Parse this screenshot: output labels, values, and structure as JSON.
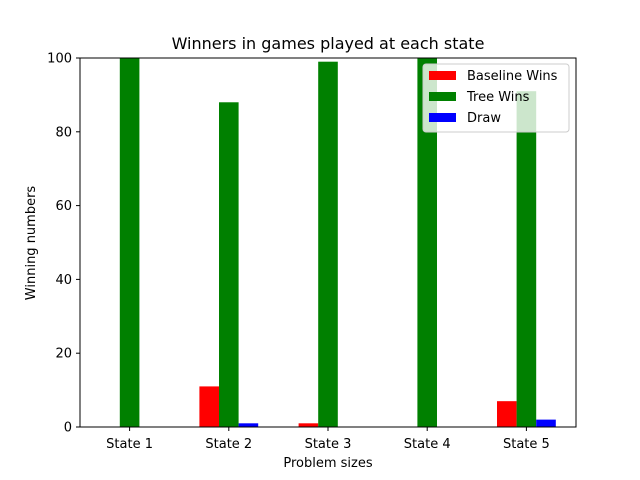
{
  "chart_data": {
    "type": "bar",
    "title": "Winners in games played at each state",
    "xlabel": "Problem sizes",
    "ylabel": "Winning numbers",
    "categories": [
      "State 1",
      "State 2",
      "State 3",
      "State 4",
      "State 5"
    ],
    "series": [
      {
        "name": "Baseline Wins",
        "color": "#ff0000",
        "values": [
          0,
          11,
          1,
          0,
          7
        ]
      },
      {
        "name": "Tree Wins",
        "color": "#008000",
        "values": [
          100,
          88,
          99,
          100,
          91
        ]
      },
      {
        "name": "Draw",
        "color": "#0000ff",
        "values": [
          0,
          1,
          0,
          0,
          2
        ]
      }
    ],
    "ylim": [
      0,
      100
    ],
    "yticks": [
      0,
      20,
      40,
      60,
      80,
      100
    ],
    "grid": false,
    "legend_position": "top-right"
  }
}
